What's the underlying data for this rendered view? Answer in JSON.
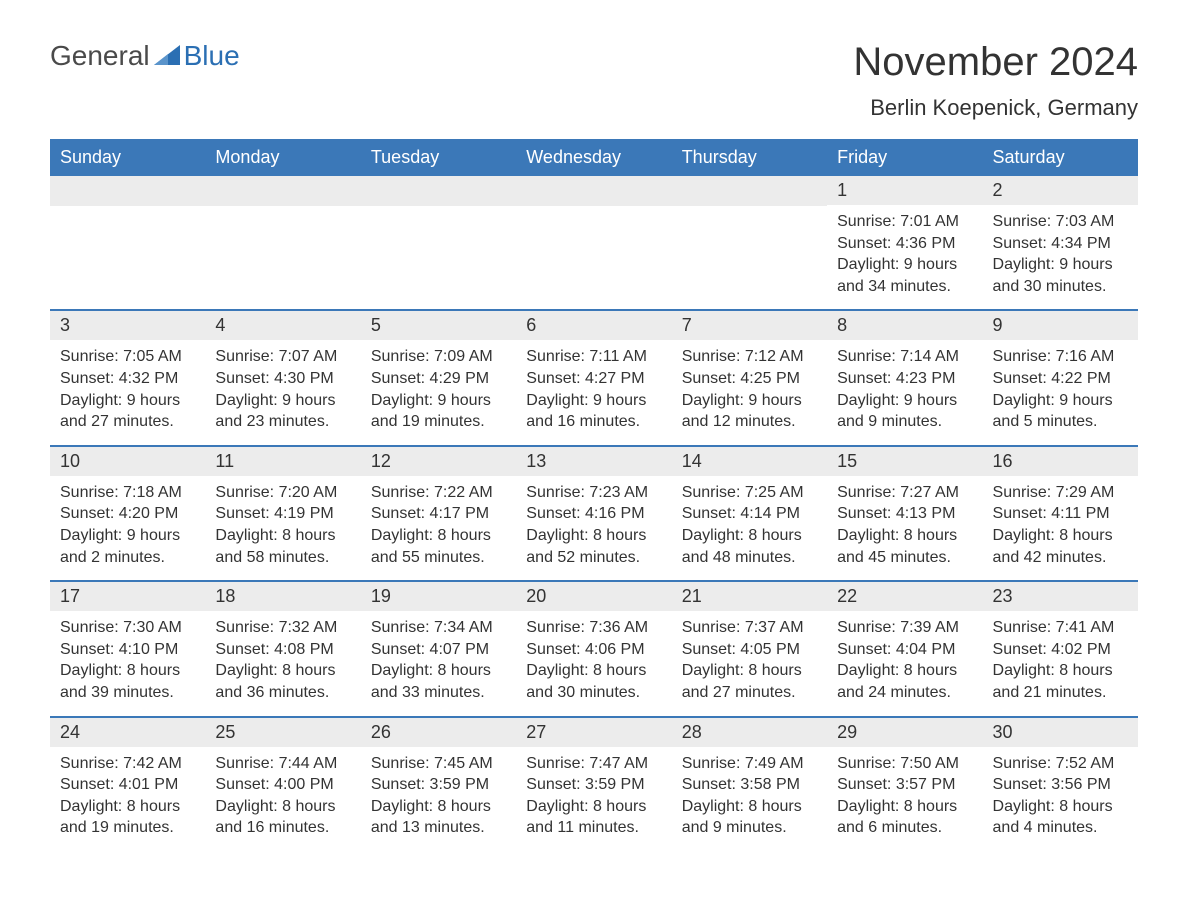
{
  "logo": {
    "general": "General",
    "blue": "Blue"
  },
  "title": "November 2024",
  "location": "Berlin Koepenick, Germany",
  "colors": {
    "header_bg": "#3b78b8",
    "header_text": "#ffffff",
    "daynum_bg": "#ececec",
    "text": "#333333",
    "rule": "#3b78b8",
    "logo_gray": "#4a4a4a",
    "logo_blue": "#2b6fb3"
  },
  "dayNames": [
    "Sunday",
    "Monday",
    "Tuesday",
    "Wednesday",
    "Thursday",
    "Friday",
    "Saturday"
  ],
  "weeks": [
    [
      {
        "day": "",
        "empty": true
      },
      {
        "day": "",
        "empty": true
      },
      {
        "day": "",
        "empty": true
      },
      {
        "day": "",
        "empty": true
      },
      {
        "day": "",
        "empty": true
      },
      {
        "day": "1",
        "sunrise": "Sunrise: 7:01 AM",
        "sunset": "Sunset: 4:36 PM",
        "daylight1": "Daylight: 9 hours",
        "daylight2": "and 34 minutes."
      },
      {
        "day": "2",
        "sunrise": "Sunrise: 7:03 AM",
        "sunset": "Sunset: 4:34 PM",
        "daylight1": "Daylight: 9 hours",
        "daylight2": "and 30 minutes."
      }
    ],
    [
      {
        "day": "3",
        "sunrise": "Sunrise: 7:05 AM",
        "sunset": "Sunset: 4:32 PM",
        "daylight1": "Daylight: 9 hours",
        "daylight2": "and 27 minutes."
      },
      {
        "day": "4",
        "sunrise": "Sunrise: 7:07 AM",
        "sunset": "Sunset: 4:30 PM",
        "daylight1": "Daylight: 9 hours",
        "daylight2": "and 23 minutes."
      },
      {
        "day": "5",
        "sunrise": "Sunrise: 7:09 AM",
        "sunset": "Sunset: 4:29 PM",
        "daylight1": "Daylight: 9 hours",
        "daylight2": "and 19 minutes."
      },
      {
        "day": "6",
        "sunrise": "Sunrise: 7:11 AM",
        "sunset": "Sunset: 4:27 PM",
        "daylight1": "Daylight: 9 hours",
        "daylight2": "and 16 minutes."
      },
      {
        "day": "7",
        "sunrise": "Sunrise: 7:12 AM",
        "sunset": "Sunset: 4:25 PM",
        "daylight1": "Daylight: 9 hours",
        "daylight2": "and 12 minutes."
      },
      {
        "day": "8",
        "sunrise": "Sunrise: 7:14 AM",
        "sunset": "Sunset: 4:23 PM",
        "daylight1": "Daylight: 9 hours",
        "daylight2": "and 9 minutes."
      },
      {
        "day": "9",
        "sunrise": "Sunrise: 7:16 AM",
        "sunset": "Sunset: 4:22 PM",
        "daylight1": "Daylight: 9 hours",
        "daylight2": "and 5 minutes."
      }
    ],
    [
      {
        "day": "10",
        "sunrise": "Sunrise: 7:18 AM",
        "sunset": "Sunset: 4:20 PM",
        "daylight1": "Daylight: 9 hours",
        "daylight2": "and 2 minutes."
      },
      {
        "day": "11",
        "sunrise": "Sunrise: 7:20 AM",
        "sunset": "Sunset: 4:19 PM",
        "daylight1": "Daylight: 8 hours",
        "daylight2": "and 58 minutes."
      },
      {
        "day": "12",
        "sunrise": "Sunrise: 7:22 AM",
        "sunset": "Sunset: 4:17 PM",
        "daylight1": "Daylight: 8 hours",
        "daylight2": "and 55 minutes."
      },
      {
        "day": "13",
        "sunrise": "Sunrise: 7:23 AM",
        "sunset": "Sunset: 4:16 PM",
        "daylight1": "Daylight: 8 hours",
        "daylight2": "and 52 minutes."
      },
      {
        "day": "14",
        "sunrise": "Sunrise: 7:25 AM",
        "sunset": "Sunset: 4:14 PM",
        "daylight1": "Daylight: 8 hours",
        "daylight2": "and 48 minutes."
      },
      {
        "day": "15",
        "sunrise": "Sunrise: 7:27 AM",
        "sunset": "Sunset: 4:13 PM",
        "daylight1": "Daylight: 8 hours",
        "daylight2": "and 45 minutes."
      },
      {
        "day": "16",
        "sunrise": "Sunrise: 7:29 AM",
        "sunset": "Sunset: 4:11 PM",
        "daylight1": "Daylight: 8 hours",
        "daylight2": "and 42 minutes."
      }
    ],
    [
      {
        "day": "17",
        "sunrise": "Sunrise: 7:30 AM",
        "sunset": "Sunset: 4:10 PM",
        "daylight1": "Daylight: 8 hours",
        "daylight2": "and 39 minutes."
      },
      {
        "day": "18",
        "sunrise": "Sunrise: 7:32 AM",
        "sunset": "Sunset: 4:08 PM",
        "daylight1": "Daylight: 8 hours",
        "daylight2": "and 36 minutes."
      },
      {
        "day": "19",
        "sunrise": "Sunrise: 7:34 AM",
        "sunset": "Sunset: 4:07 PM",
        "daylight1": "Daylight: 8 hours",
        "daylight2": "and 33 minutes."
      },
      {
        "day": "20",
        "sunrise": "Sunrise: 7:36 AM",
        "sunset": "Sunset: 4:06 PM",
        "daylight1": "Daylight: 8 hours",
        "daylight2": "and 30 minutes."
      },
      {
        "day": "21",
        "sunrise": "Sunrise: 7:37 AM",
        "sunset": "Sunset: 4:05 PM",
        "daylight1": "Daylight: 8 hours",
        "daylight2": "and 27 minutes."
      },
      {
        "day": "22",
        "sunrise": "Sunrise: 7:39 AM",
        "sunset": "Sunset: 4:04 PM",
        "daylight1": "Daylight: 8 hours",
        "daylight2": "and 24 minutes."
      },
      {
        "day": "23",
        "sunrise": "Sunrise: 7:41 AM",
        "sunset": "Sunset: 4:02 PM",
        "daylight1": "Daylight: 8 hours",
        "daylight2": "and 21 minutes."
      }
    ],
    [
      {
        "day": "24",
        "sunrise": "Sunrise: 7:42 AM",
        "sunset": "Sunset: 4:01 PM",
        "daylight1": "Daylight: 8 hours",
        "daylight2": "and 19 minutes."
      },
      {
        "day": "25",
        "sunrise": "Sunrise: 7:44 AM",
        "sunset": "Sunset: 4:00 PM",
        "daylight1": "Daylight: 8 hours",
        "daylight2": "and 16 minutes."
      },
      {
        "day": "26",
        "sunrise": "Sunrise: 7:45 AM",
        "sunset": "Sunset: 3:59 PM",
        "daylight1": "Daylight: 8 hours",
        "daylight2": "and 13 minutes."
      },
      {
        "day": "27",
        "sunrise": "Sunrise: 7:47 AM",
        "sunset": "Sunset: 3:59 PM",
        "daylight1": "Daylight: 8 hours",
        "daylight2": "and 11 minutes."
      },
      {
        "day": "28",
        "sunrise": "Sunrise: 7:49 AM",
        "sunset": "Sunset: 3:58 PM",
        "daylight1": "Daylight: 8 hours",
        "daylight2": "and 9 minutes."
      },
      {
        "day": "29",
        "sunrise": "Sunrise: 7:50 AM",
        "sunset": "Sunset: 3:57 PM",
        "daylight1": "Daylight: 8 hours",
        "daylight2": "and 6 minutes."
      },
      {
        "day": "30",
        "sunrise": "Sunrise: 7:52 AM",
        "sunset": "Sunset: 3:56 PM",
        "daylight1": "Daylight: 8 hours",
        "daylight2": "and 4 minutes."
      }
    ]
  ]
}
